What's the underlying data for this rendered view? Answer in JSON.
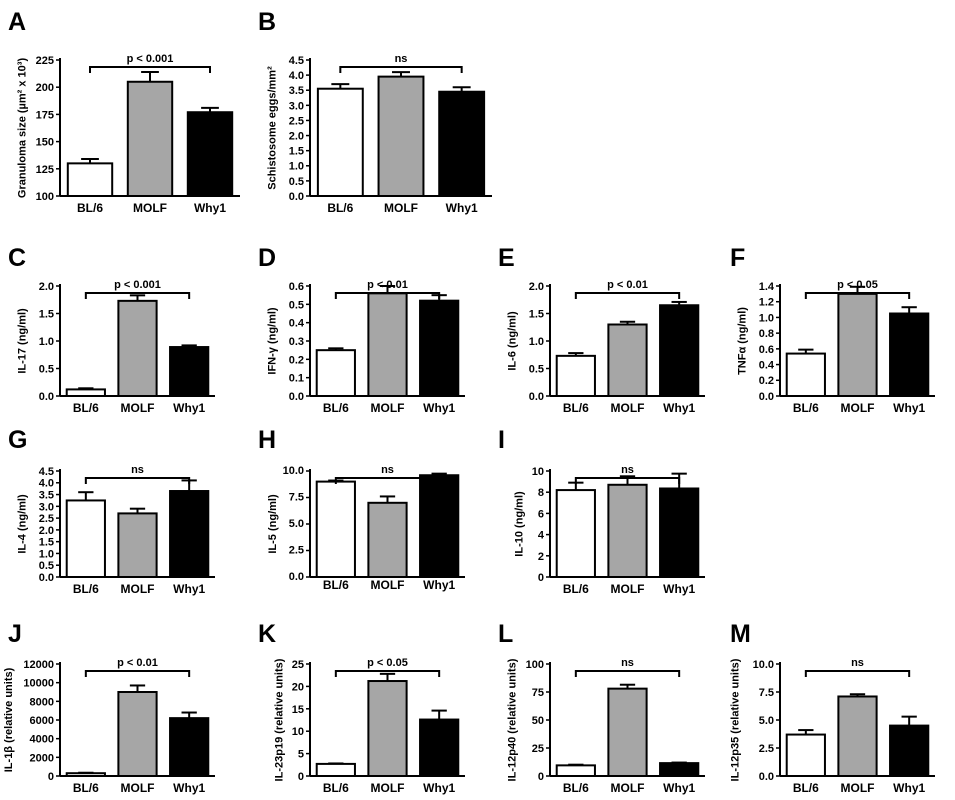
{
  "chart_data": [
    {
      "panel": "A",
      "type": "bar",
      "categories": [
        "BL/6",
        "MOLF",
        "Why1"
      ],
      "values": [
        130,
        205,
        177
      ],
      "errors": [
        4,
        9,
        4
      ],
      "ylabel": "Granuloma size (µm² x 10³)",
      "yticks": [
        "100",
        "125",
        "150",
        "175",
        "200",
        "225"
      ],
      "ylim": [
        100,
        225
      ],
      "significance": "p < 0.001",
      "sig_span": [
        0,
        2
      ]
    },
    {
      "panel": "B",
      "type": "bar",
      "categories": [
        "BL/6",
        "MOLF",
        "Why1"
      ],
      "values": [
        3.55,
        3.95,
        3.45
      ],
      "errors": [
        0.15,
        0.15,
        0.15
      ],
      "ylabel": "Schistosome eggs/mm²",
      "yticks": [
        "0.0",
        "0.5",
        "1.0",
        "1.5",
        "2.0",
        "2.5",
        "3.0",
        "3.5",
        "4.0",
        "4.5"
      ],
      "ylim": [
        0,
        4.5
      ],
      "significance": "ns",
      "sig_span": [
        0,
        2
      ]
    },
    {
      "panel": "C",
      "type": "bar",
      "categories": [
        "BL/6",
        "MOLF",
        "Why1"
      ],
      "values": [
        0.12,
        1.73,
        0.89
      ],
      "errors": [
        0.02,
        0.1,
        0.03
      ],
      "ylabel": "IL-17 (ng/ml)",
      "yticks": [
        "0.0",
        "0.5",
        "1.0",
        "1.5",
        "2.0"
      ],
      "ylim": [
        0,
        2.0
      ],
      "significance": "p < 0.001",
      "sig_span": [
        0,
        2
      ]
    },
    {
      "panel": "D",
      "type": "bar",
      "categories": [
        "BL/6",
        "MOLF",
        "Why1"
      ],
      "values": [
        0.25,
        0.56,
        0.52
      ],
      "errors": [
        0.01,
        0.04,
        0.03
      ],
      "ylabel": "IFN-γ (ng/ml)",
      "yticks": [
        "0.0",
        "0.1",
        "0.2",
        "0.3",
        "0.4",
        "0.5",
        "0.6"
      ],
      "ylim": [
        0,
        0.6
      ],
      "significance": "p < 0.01",
      "sig_span": [
        0,
        2
      ]
    },
    {
      "panel": "E",
      "type": "bar",
      "categories": [
        "BL/6",
        "MOLF",
        "Why1"
      ],
      "values": [
        0.73,
        1.3,
        1.65
      ],
      "errors": [
        0.05,
        0.05,
        0.06
      ],
      "ylabel": "IL-6 (ng/ml)",
      "yticks": [
        "0.0",
        "0.5",
        "1.0",
        "1.5",
        "2.0"
      ],
      "ylim": [
        0,
        2.0
      ],
      "significance": "p < 0.01",
      "sig_span": [
        0,
        2
      ]
    },
    {
      "panel": "F",
      "type": "bar",
      "categories": [
        "BL/6",
        "MOLF",
        "Why1"
      ],
      "values": [
        0.54,
        1.3,
        1.05
      ],
      "errors": [
        0.05,
        0.09,
        0.08
      ],
      "ylabel": "TNFα (ng/ml)",
      "yticks": [
        "0.0",
        "0.2",
        "0.4",
        "0.6",
        "0.8",
        "1.0",
        "1.2",
        "1.4"
      ],
      "ylim": [
        0,
        1.4
      ],
      "significance": "p < 0.05",
      "sig_span": [
        0,
        2
      ]
    },
    {
      "panel": "G",
      "type": "bar",
      "categories": [
        "BL/6",
        "MOLF",
        "Why1"
      ],
      "values": [
        3.25,
        2.7,
        3.65
      ],
      "errors": [
        0.35,
        0.2,
        0.45
      ],
      "ylabel": "IL-4 (ng/ml)",
      "yticks": [
        "0.0",
        "0.5",
        "1.0",
        "1.5",
        "2.0",
        "2.5",
        "3.0",
        "3.5",
        "4.0",
        "4.5"
      ],
      "ylim": [
        0,
        4.5
      ],
      "significance": "ns",
      "sig_span": [
        0,
        2
      ]
    },
    {
      "panel": "H",
      "type": "bar",
      "categories": [
        "BL/6",
        "MOLF",
        "Why1"
      ],
      "values": [
        9.0,
        7.0,
        9.6
      ],
      "errors": [
        0.1,
        0.6,
        0.15
      ],
      "ylabel": "IL-5 (ng/ml)",
      "yticks": [
        "0.0",
        "2.5",
        "5.0",
        "7.5",
        "10.0"
      ],
      "ylim": [
        0,
        10
      ],
      "significance": "ns",
      "sig_span": [
        0,
        2
      ],
      "small_text": true
    },
    {
      "panel": "I",
      "type": "bar",
      "categories": [
        "BL/6",
        "MOLF",
        "Why1"
      ],
      "values": [
        8.2,
        8.7,
        8.35
      ],
      "errors": [
        0.7,
        0.8,
        1.4
      ],
      "ylabel": "IL-10 (ng/ml)",
      "yticks": [
        "0",
        "2",
        "4",
        "6",
        "8",
        "10"
      ],
      "ylim": [
        0,
        10
      ],
      "significance": "ns",
      "sig_span": [
        0,
        2
      ]
    },
    {
      "panel": "J",
      "type": "bar",
      "categories": [
        "BL/6",
        "MOLF",
        "Why1"
      ],
      "values": [
        300,
        9000,
        6200
      ],
      "errors": [
        50,
        700,
        600
      ],
      "ylabel": "IL-1β (relative units)",
      "yticks": [
        "0",
        "2000",
        "4000",
        "6000",
        "8000",
        "10000",
        "12000"
      ],
      "ylim": [
        0,
        12000
      ],
      "significance": "p < 0.01",
      "sig_span": [
        0,
        2
      ]
    },
    {
      "panel": "K",
      "type": "bar",
      "categories": [
        "BL/6",
        "MOLF",
        "Why1"
      ],
      "values": [
        2.7,
        21.2,
        12.6
      ],
      "errors": [
        0.1,
        1.6,
        2.0
      ],
      "ylabel": "IL-23p19 (relative units)",
      "yticks": [
        "0",
        "5",
        "10",
        "15",
        "20",
        "25"
      ],
      "ylim": [
        0,
        25
      ],
      "significance": "p < 0.05",
      "sig_span": [
        0,
        2
      ]
    },
    {
      "panel": "L",
      "type": "bar",
      "categories": [
        "BL/6",
        "MOLF",
        "Why1"
      ],
      "values": [
        9.5,
        78,
        11.5
      ],
      "errors": [
        0.6,
        3.5,
        0.5
      ],
      "ylabel": "IL-12p40 (relative units)",
      "yticks": [
        "0",
        "25",
        "50",
        "75",
        "100"
      ],
      "ylim": [
        0,
        100
      ],
      "significance": "ns",
      "sig_span": [
        0,
        2
      ]
    },
    {
      "panel": "M",
      "type": "bar",
      "categories": [
        "BL/6",
        "MOLF",
        "Why1"
      ],
      "values": [
        3.7,
        7.1,
        4.5
      ],
      "errors": [
        0.4,
        0.2,
        0.8
      ],
      "ylabel": "IL-12p35 (relative units)",
      "yticks": [
        "0.0",
        "2.5",
        "5.0",
        "7.5",
        "10.0"
      ],
      "ylim": [
        0,
        10
      ],
      "significance": "ns",
      "sig_span": [
        0,
        2
      ]
    }
  ],
  "colors": {
    "bar_fills": [
      "#ffffff",
      "#a6a6a6",
      "#000000"
    ],
    "outline": "#000000",
    "background": "#ffffff"
  }
}
